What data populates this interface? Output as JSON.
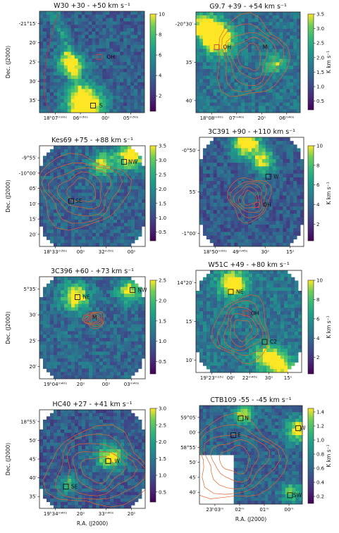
{
  "chart_data": [
    {
      "type": "heatmap",
      "title": "W30 +30 - +50 km s⁻¹",
      "colorbar": {
        "ticks": [
          2,
          4,
          6,
          8,
          10
        ],
        "range": [
          0.5,
          10
        ],
        "unit": ""
      },
      "colormap": "viridis",
      "ylabel": "Dec. (J2000)",
      "xlabel": "",
      "xticks": [
        "18ʰ07ᵐ⁰⁰ˢ",
        "06ᵐ³⁰ˢ",
        "00ˢ",
        "05ᵐ³⁰ˢ"
      ],
      "yticks": [
        "-21°15′",
        "20′",
        "25′",
        "30′",
        "35′"
      ],
      "markers": [
        {
          "label": "OH"
        },
        {
          "label": "S"
        }
      ],
      "contours": "arc"
    },
    {
      "type": "heatmap",
      "title": "G9.7 +39 - +54 km s⁻¹",
      "colorbar": {
        "ticks": [
          0.5,
          1.0,
          1.5,
          2.0,
          2.5,
          3.0,
          3.5
        ],
        "range": [
          0.2,
          3.5
        ],
        "unit": "K km s⁻¹"
      },
      "colormap": "viridis",
      "ylabel": "",
      "xlabel": "",
      "xticks": [
        "18ʰ08ᵐ⁰⁰ˢ",
        "07ᵐ⁴⁰ˢ",
        "20ˢ",
        "06ᵐ⁴⁰ˢ"
      ],
      "yticks": [
        "-20°30′",
        "35′",
        "40′"
      ],
      "markers": [
        {
          "label": "OH"
        },
        {
          "label": "M"
        }
      ],
      "contours": "shell"
    },
    {
      "type": "heatmap",
      "title": "Kes69 +75 - +88 km s⁻¹",
      "colorbar": {
        "ticks": [
          0.5,
          1.0,
          1.5,
          2.0,
          2.5,
          3.0,
          3.5
        ],
        "range": [
          0.2,
          3.5
        ],
        "unit": ""
      },
      "colormap": "viridis",
      "ylabel": "Dec. (J2000)",
      "xlabel": "",
      "xticks": [
        "18ʰ33ᵐ³⁰ˢ",
        "00ˢ",
        "32ᵐ³⁰ˢ",
        "00ˢ"
      ],
      "yticks": [
        "-9°55′",
        "-10°00′",
        "05′",
        "10′",
        "15′",
        "20′"
      ],
      "markers": [
        {
          "label": "NW"
        },
        {
          "label": "SE"
        }
      ],
      "contours": "shell"
    },
    {
      "type": "heatmap",
      "title": "3C391 +90 - +110 km s⁻¹",
      "colorbar": {
        "ticks": [
          2,
          4,
          6,
          8,
          10
        ],
        "range": [
          0.3,
          10
        ],
        "unit": "K km s⁻¹"
      },
      "colormap": "viridis",
      "ylabel": "",
      "xlabel": "",
      "xticks": [
        "18ʰ50ᵐ⁰⁰ˢ",
        "49ᵐ⁴⁵ˢ",
        "30ˢ",
        "15ˢ"
      ],
      "yticks": [
        "-0°50′",
        "55′",
        "-1°00′"
      ],
      "markers": [
        {
          "label": "W"
        },
        {
          "label": "OH"
        }
      ],
      "contours": "shell"
    },
    {
      "type": "heatmap",
      "title": "3C396 +60 - +73 km s⁻¹",
      "colorbar": {
        "ticks": [
          0.5,
          1.0,
          1.5,
          2.0,
          2.5
        ],
        "range": [
          0.2,
          2.5
        ],
        "unit": ""
      },
      "colormap": "viridis",
      "ylabel": "Dec. (J2000)",
      "xlabel": "",
      "xticks": [
        "19ʰ04ᵐ⁴⁰ˢ",
        "20ˢ",
        "00ˢ",
        "03ᵐ⁴⁰ˢ"
      ],
      "yticks": [
        "5°35′",
        "30′",
        "25′",
        "20′"
      ],
      "markers": [
        {
          "label": "NE"
        },
        {
          "label": "NW"
        },
        {
          "label": "M"
        }
      ],
      "contours": "shell"
    },
    {
      "type": "heatmap",
      "title": "W51C +49 - +80 km s⁻¹",
      "colorbar": {
        "ticks": [
          2,
          4,
          6,
          8,
          10
        ],
        "range": [
          0.3,
          10
        ],
        "unit": "K km s⁻¹"
      },
      "colormap": "viridis",
      "ylabel": "",
      "xlabel": "",
      "xticks": [
        "19ʰ23ᵐ¹⁵ˢ",
        "00ˢ",
        "22ᵐ⁴⁵ˢ",
        "30ˢ",
        "15ˢ"
      ],
      "yticks": [
        "14°20′",
        "15′",
        "10′"
      ],
      "markers": [
        {
          "label": "NE"
        },
        {
          "label": "OH"
        },
        {
          "label": "C2"
        }
      ],
      "contours": "shell"
    },
    {
      "type": "heatmap",
      "title": "HC40 +27 - +41 km s⁻¹",
      "colorbar": {
        "ticks": [
          0.5,
          1.0,
          1.5,
          2.0,
          2.5,
          3.0
        ],
        "range": [
          0.2,
          3.0
        ],
        "unit": ""
      },
      "colormap": "viridis",
      "ylabel": "Dec. (J2000)",
      "xlabel": "R.A. (J2000)",
      "xticks": [
        "19ʰ34ᵐ⁴⁰ˢ",
        "20ˢ",
        "33ᵐ⁴⁰ˢ",
        "20ˢ"
      ],
      "yticks": [
        "18°55′",
        "50′",
        "45′",
        "40′",
        "35′"
      ],
      "markers": [
        {
          "label": "W"
        },
        {
          "label": "SE"
        }
      ],
      "contours": "shell"
    },
    {
      "type": "heatmap",
      "title": "CTB109 -55 - -45 km s⁻¹",
      "colorbar": {
        "ticks": [
          0.2,
          0.4,
          0.6,
          0.8,
          1.0,
          1.2,
          1.4
        ],
        "range": [
          0.1,
          1.45
        ],
        "unit": "K km s⁻¹"
      },
      "colormap": "viridis",
      "ylabel": "",
      "xlabel": "R.A. (J2000)",
      "xticks": [
        "23ʰ03ᵐ",
        "02ᵐ",
        "01ᵐ",
        "00ᵐ"
      ],
      "yticks": [
        "59°05′",
        "00′",
        "58°55′",
        "50′",
        "45′",
        "40′"
      ],
      "markers": [
        {
          "label": "N"
        },
        {
          "label": "E"
        },
        {
          "label": "W"
        },
        {
          "label": "SW"
        }
      ],
      "contours": "shell"
    }
  ]
}
